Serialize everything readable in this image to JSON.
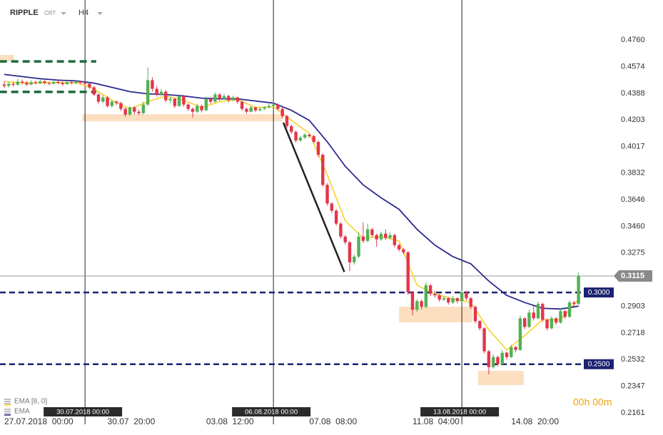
{
  "header": {
    "symbol": "RIPPLE",
    "source": "CRT",
    "timeframe": "H4"
  },
  "chart_data": {
    "type": "candlestick",
    "candle_colors": {
      "up": "#52b152",
      "down": "#e3354b"
    },
    "candles": [
      [
        0.445,
        0.4475,
        0.4425,
        0.444
      ],
      [
        0.444,
        0.447,
        0.443,
        0.4455
      ],
      [
        0.4455,
        0.447,
        0.4435,
        0.4448
      ],
      [
        0.4448,
        0.449,
        0.444,
        0.447
      ],
      [
        0.447,
        0.4485,
        0.445,
        0.4462
      ],
      [
        0.4462,
        0.4475,
        0.444,
        0.445
      ],
      [
        0.445,
        0.448,
        0.4445,
        0.4465
      ],
      [
        0.4465,
        0.4478,
        0.445,
        0.4458
      ],
      [
        0.4458,
        0.4485,
        0.4452,
        0.4472
      ],
      [
        0.4472,
        0.448,
        0.445,
        0.446
      ],
      [
        0.446,
        0.447,
        0.4445,
        0.4455
      ],
      [
        0.4455,
        0.448,
        0.445,
        0.4468
      ],
      [
        0.4468,
        0.4475,
        0.4452,
        0.4461
      ],
      [
        0.4461,
        0.447,
        0.444,
        0.4452
      ],
      [
        0.4452,
        0.4478,
        0.4448,
        0.4466
      ],
      [
        0.4466,
        0.4472,
        0.445,
        0.4459
      ],
      [
        0.4459,
        0.4482,
        0.4455,
        0.447
      ],
      [
        0.447,
        0.4478,
        0.4452,
        0.4462
      ],
      [
        0.4462,
        0.447,
        0.4445,
        0.4455
      ],
      [
        0.4455,
        0.4462,
        0.442,
        0.443
      ],
      [
        0.443,
        0.444,
        0.437,
        0.438
      ],
      [
        0.438,
        0.439,
        0.4315,
        0.433
      ],
      [
        0.433,
        0.4375,
        0.432,
        0.436
      ],
      [
        0.436,
        0.4368,
        0.429,
        0.43
      ],
      [
        0.43,
        0.4345,
        0.429,
        0.433
      ],
      [
        0.433,
        0.434,
        0.4305,
        0.432
      ],
      [
        0.432,
        0.433,
        0.4265,
        0.428
      ],
      [
        0.428,
        0.429,
        0.4225,
        0.424
      ],
      [
        0.424,
        0.43,
        0.423,
        0.429
      ],
      [
        0.429,
        0.4298,
        0.424,
        0.426
      ],
      [
        0.426,
        0.4275,
        0.4235,
        0.425
      ],
      [
        0.425,
        0.433,
        0.424,
        0.431
      ],
      [
        0.431,
        0.457,
        0.43,
        0.448
      ],
      [
        0.448,
        0.45,
        0.44,
        0.442
      ],
      [
        0.442,
        0.444,
        0.4365,
        0.438
      ],
      [
        0.438,
        0.442,
        0.437,
        0.44
      ],
      [
        0.44,
        0.441,
        0.4325,
        0.434
      ],
      [
        0.434,
        0.4365,
        0.432,
        0.435
      ],
      [
        0.435,
        0.4358,
        0.4285,
        0.43
      ],
      [
        0.43,
        0.4385,
        0.4295,
        0.437
      ],
      [
        0.437,
        0.4378,
        0.4295,
        0.431
      ],
      [
        0.431,
        0.432,
        0.4265,
        0.428
      ],
      [
        0.428,
        0.429,
        0.422,
        0.426
      ],
      [
        0.426,
        0.4315,
        0.425,
        0.43
      ],
      [
        0.43,
        0.431,
        0.4255,
        0.427
      ],
      [
        0.427,
        0.4365,
        0.4265,
        0.435
      ],
      [
        0.435,
        0.436,
        0.4315,
        0.433
      ],
      [
        0.433,
        0.4395,
        0.4325,
        0.438
      ],
      [
        0.438,
        0.4388,
        0.4335,
        0.435
      ],
      [
        0.435,
        0.4385,
        0.4345,
        0.437
      ],
      [
        0.437,
        0.4378,
        0.4325,
        0.434
      ],
      [
        0.434,
        0.4372,
        0.4335,
        0.436
      ],
      [
        0.436,
        0.4365,
        0.4315,
        0.433
      ],
      [
        0.433,
        0.4338,
        0.4265,
        0.428
      ],
      [
        0.428,
        0.429,
        0.4245,
        0.426
      ],
      [
        0.426,
        0.43,
        0.4255,
        0.429
      ],
      [
        0.429,
        0.4295,
        0.4258,
        0.427
      ],
      [
        0.427,
        0.4292,
        0.4262,
        0.428
      ],
      [
        0.428,
        0.4298,
        0.4272,
        0.429
      ],
      [
        0.429,
        0.4315,
        0.4282,
        0.43
      ],
      [
        0.43,
        0.433,
        0.429,
        0.431
      ],
      [
        0.431,
        0.4318,
        0.4268,
        0.428
      ],
      [
        0.428,
        0.429,
        0.4215,
        0.423
      ],
      [
        0.423,
        0.4238,
        0.4145,
        0.416
      ],
      [
        0.416,
        0.417,
        0.4105,
        0.412
      ],
      [
        0.412,
        0.4128,
        0.4045,
        0.406
      ],
      [
        0.406,
        0.4092,
        0.405,
        0.408
      ],
      [
        0.408,
        0.4112,
        0.407,
        0.41
      ],
      [
        0.41,
        0.4108,
        0.4078,
        0.409
      ],
      [
        0.409,
        0.4098,
        0.404,
        0.405
      ],
      [
        0.405,
        0.4058,
        0.3945,
        0.396
      ],
      [
        0.396,
        0.3968,
        0.3735,
        0.375
      ],
      [
        0.375,
        0.3762,
        0.3605,
        0.362
      ],
      [
        0.362,
        0.363,
        0.3555,
        0.357
      ],
      [
        0.357,
        0.358,
        0.3465,
        0.348
      ],
      [
        0.348,
        0.349,
        0.3375,
        0.339
      ],
      [
        0.339,
        0.34,
        0.3335,
        0.335
      ],
      [
        0.335,
        0.3358,
        0.315,
        0.321
      ],
      [
        0.321,
        0.3265,
        0.3195,
        0.325
      ],
      [
        0.325,
        0.342,
        0.324,
        0.339
      ],
      [
        0.339,
        0.349,
        0.3345,
        0.336
      ],
      [
        0.336,
        0.348,
        0.335,
        0.344
      ],
      [
        0.344,
        0.345,
        0.3385,
        0.34
      ],
      [
        0.34,
        0.341,
        0.332,
        0.337
      ],
      [
        0.337,
        0.3425,
        0.336,
        0.341
      ],
      [
        0.341,
        0.344,
        0.3365,
        0.338
      ],
      [
        0.338,
        0.342,
        0.337,
        0.34
      ],
      [
        0.34,
        0.3408,
        0.3315,
        0.333
      ],
      [
        0.333,
        0.334,
        0.3285,
        0.33
      ],
      [
        0.33,
        0.331,
        0.3265,
        0.328
      ],
      [
        0.328,
        0.3288,
        0.2985,
        0.3
      ],
      [
        0.3,
        0.301,
        0.284,
        0.288
      ],
      [
        0.288,
        0.2955,
        0.2865,
        0.294
      ],
      [
        0.294,
        0.295,
        0.288,
        0.29
      ],
      [
        0.29,
        0.307,
        0.289,
        0.305
      ],
      [
        0.305,
        0.306,
        0.2975,
        0.299
      ],
      [
        0.299,
        0.301,
        0.2965,
        0.298
      ],
      [
        0.298,
        0.299,
        0.2935,
        0.295
      ],
      [
        0.295,
        0.2975,
        0.294,
        0.296
      ],
      [
        0.296,
        0.2968,
        0.2915,
        0.293
      ],
      [
        0.293,
        0.2975,
        0.2922,
        0.296
      ],
      [
        0.296,
        0.2968,
        0.2925,
        0.294
      ],
      [
        0.294,
        0.302,
        0.293,
        0.3
      ],
      [
        0.3,
        0.301,
        0.2945,
        0.296
      ],
      [
        0.296,
        0.2968,
        0.2885,
        0.29
      ],
      [
        0.29,
        0.2908,
        0.2785,
        0.28
      ],
      [
        0.28,
        0.2808,
        0.2735,
        0.275
      ],
      [
        0.275,
        0.2758,
        0.2575,
        0.259
      ],
      [
        0.259,
        0.2598,
        0.243,
        0.248
      ],
      [
        0.248,
        0.257,
        0.247,
        0.255
      ],
      [
        0.255,
        0.2558,
        0.2485,
        0.25
      ],
      [
        0.25,
        0.2598,
        0.2492,
        0.258
      ],
      [
        0.258,
        0.2588,
        0.2535,
        0.255
      ],
      [
        0.255,
        0.2635,
        0.2542,
        0.262
      ],
      [
        0.262,
        0.2628,
        0.2585,
        0.26
      ],
      [
        0.26,
        0.284,
        0.2592,
        0.282
      ],
      [
        0.282,
        0.2828,
        0.2745,
        0.276
      ],
      [
        0.276,
        0.288,
        0.2752,
        0.286
      ],
      [
        0.286,
        0.2905,
        0.2805,
        0.282
      ],
      [
        0.282,
        0.2935,
        0.2812,
        0.292
      ],
      [
        0.292,
        0.2928,
        0.2795,
        0.281
      ],
      [
        0.281,
        0.2818,
        0.2735,
        0.275
      ],
      [
        0.275,
        0.2835,
        0.2742,
        0.282
      ],
      [
        0.282,
        0.2828,
        0.2775,
        0.279
      ],
      [
        0.279,
        0.2885,
        0.2782,
        0.287
      ],
      [
        0.287,
        0.2878,
        0.2815,
        0.283
      ],
      [
        0.283,
        0.2945,
        0.2822,
        0.293
      ],
      [
        0.293,
        0.2942,
        0.2905,
        0.292
      ],
      [
        0.292,
        0.314,
        0.2912,
        0.3115
      ]
    ],
    "series": [
      {
        "name": "EMA [8, 0]",
        "color": "#f5d327",
        "x": [
          0,
          4,
          8,
          12,
          16,
          20,
          24,
          28,
          32,
          36,
          40,
          44,
          48,
          52,
          56,
          60,
          64,
          68,
          72,
          76,
          80,
          84,
          88,
          92,
          96,
          100,
          104,
          108,
          112,
          116,
          120,
          124,
          128
        ],
        "values": [
          0.447,
          0.4462,
          0.4462,
          0.4463,
          0.4463,
          0.442,
          0.434,
          0.428,
          0.433,
          0.437,
          0.434,
          0.429,
          0.433,
          0.4345,
          0.429,
          0.4295,
          0.42,
          0.411,
          0.382,
          0.35,
          0.338,
          0.339,
          0.336,
          0.305,
          0.299,
          0.2955,
          0.293,
          0.274,
          0.26,
          0.27,
          0.281,
          0.281,
          0.295
        ]
      },
      {
        "name": "EMA",
        "color": "#2b2a8f",
        "x": [
          0,
          4,
          8,
          12,
          16,
          20,
          24,
          28,
          32,
          36,
          40,
          44,
          48,
          52,
          56,
          60,
          64,
          68,
          72,
          76,
          80,
          84,
          88,
          92,
          96,
          100,
          104,
          108,
          112,
          116,
          120,
          124,
          128
        ],
        "values": [
          0.452,
          0.4505,
          0.449,
          0.448,
          0.4475,
          0.446,
          0.443,
          0.44,
          0.4385,
          0.438,
          0.437,
          0.4355,
          0.435,
          0.435,
          0.4335,
          0.432,
          0.427,
          0.42,
          0.405,
          0.388,
          0.375,
          0.366,
          0.358,
          0.344,
          0.333,
          0.325,
          0.32,
          0.308,
          0.298,
          0.293,
          0.289,
          0.2885,
          0.2905
        ]
      }
    ],
    "ylim": [
      0.2081,
      0.5039
    ],
    "yticks": [
      {
        "value": 0.476,
        "label": "0.4760"
      },
      {
        "value": 0.4574,
        "label": "0.4574"
      },
      {
        "value": 0.4388,
        "label": "0.4388"
      },
      {
        "value": 0.4203,
        "label": "0.4203"
      },
      {
        "value": 0.4017,
        "label": "0.4017"
      },
      {
        "value": 0.3832,
        "label": "0.3832"
      },
      {
        "value": 0.3646,
        "label": "0.3646"
      },
      {
        "value": 0.346,
        "label": "0.3460"
      },
      {
        "value": 0.3275,
        "label": "0.3275"
      },
      {
        "value": 0.2903,
        "label": "0.2903"
      },
      {
        "value": 0.2718,
        "label": "0.2718"
      },
      {
        "value": 0.2532,
        "label": "0.2532"
      },
      {
        "value": 0.2347,
        "label": "0.2347"
      },
      {
        "value": 0.2161,
        "label": "0.2161"
      }
    ],
    "xlim": [
      -0.95,
      135.86
    ],
    "xticks": [
      {
        "value": 0,
        "label": "27.07.2018  00:00"
      },
      {
        "value": 23,
        "label": "30.07  20:00"
      },
      {
        "value": 45,
        "label": "03.08  12:00"
      },
      {
        "value": 68,
        "label": "07.08  08:00"
      },
      {
        "value": 91,
        "label": "11.08  04:00"
      },
      {
        "value": 113,
        "label": "14.08  20:00"
      }
    ],
    "vlines": [
      {
        "value": 18,
        "label": "30.07.2018 00:00"
      },
      {
        "value": 60,
        "label": "06.08.2018 00:00"
      },
      {
        "value": 102,
        "label": "13.08.2018 00:00"
      }
    ],
    "levels": [
      {
        "value": 0.3,
        "label": "0.3000"
      },
      {
        "value": 0.25,
        "label": "0.2500"
      }
    ],
    "current_price": {
      "value": 0.3115,
      "label": "0.3115"
    },
    "zones": [
      {
        "x": [
          -1,
          2.2
        ],
        "y": [
          0.4611,
          0.4656
        ]
      },
      {
        "x": [
          17.4,
          62
        ],
        "y": [
          0.4193,
          0.4243
        ]
      },
      {
        "x": [
          88,
          104.4
        ],
        "y": [
          0.2792,
          0.2901
        ]
      },
      {
        "x": [
          105.6,
          115.8
        ],
        "y": [
          0.2354,
          0.2454
        ]
      }
    ],
    "support_lines": [
      {
        "x": [
          -1,
          20.5
        ],
        "y": 0.4611
      },
      {
        "x": [
          -1,
          20.5
        ],
        "y": 0.4398
      }
    ],
    "trendline": {
      "x": [
        62.2,
        75.8
      ],
      "y": [
        0.4184,
        0.3143
      ]
    },
    "countdown": "00h 00m"
  }
}
